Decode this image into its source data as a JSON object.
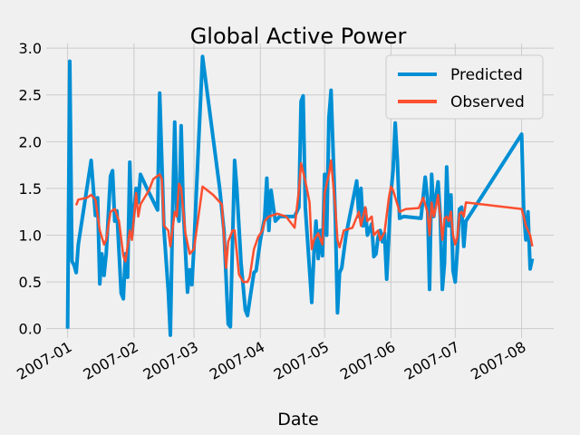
{
  "chart_data": {
    "type": "line",
    "title": "Global Active Power",
    "xlabel": "Date",
    "ylabel": "",
    "ylim": [
      -0.1,
      3.05
    ],
    "xlim": [
      "2006-12-22",
      "2007-08-16"
    ],
    "yticks": [
      "0.0",
      "0.5",
      "1.0",
      "1.5",
      "2.0",
      "2.5",
      "3.0"
    ],
    "xticks": [
      {
        "date": "2007-01-01",
        "label": "2007-01"
      },
      {
        "date": "2007-02-01",
        "label": "2007-02"
      },
      {
        "date": "2007-03-01",
        "label": "2007-03"
      },
      {
        "date": "2007-04-01",
        "label": "2007-04"
      },
      {
        "date": "2007-05-01",
        "label": "2007-05"
      },
      {
        "date": "2007-06-01",
        "label": "2007-06"
      },
      {
        "date": "2007-07-01",
        "label": "2007-07"
      },
      {
        "date": "2007-08-01",
        "label": "2007-08"
      }
    ],
    "grid": true,
    "legend_position": "top-right",
    "series": [
      {
        "name": "Predicted",
        "color": "#008fd5",
        "points": [
          [
            "2007-01-01",
            0.0
          ],
          [
            "2007-01-02",
            2.86
          ],
          [
            "2007-01-03",
            0.72
          ],
          [
            "2007-01-04",
            0.68
          ],
          [
            "2007-01-05",
            0.6
          ],
          [
            "2007-01-06",
            0.9
          ],
          [
            "2007-01-12",
            1.8
          ],
          [
            "2007-01-14",
            1.21
          ],
          [
            "2007-01-15",
            1.4
          ],
          [
            "2007-01-16",
            0.48
          ],
          [
            "2007-01-17",
            0.8
          ],
          [
            "2007-01-18",
            0.57
          ],
          [
            "2007-01-19",
            0.8
          ],
          [
            "2007-01-21",
            1.63
          ],
          [
            "2007-01-22",
            1.69
          ],
          [
            "2007-01-23",
            1.15
          ],
          [
            "2007-01-24",
            1.26
          ],
          [
            "2007-01-26",
            0.38
          ],
          [
            "2007-01-27",
            0.32
          ],
          [
            "2007-01-28",
            0.8
          ],
          [
            "2007-01-29",
            0.55
          ],
          [
            "2007-01-30",
            1.78
          ],
          [
            "2007-01-31",
            1.0
          ],
          [
            "2007-02-02",
            1.5
          ],
          [
            "2007-02-03",
            1.35
          ],
          [
            "2007-02-04",
            1.65
          ],
          [
            "2007-02-07",
            1.5
          ],
          [
            "2007-02-12",
            1.27
          ],
          [
            "2007-02-13",
            2.52
          ],
          [
            "2007-02-15",
            1.05
          ],
          [
            "2007-02-17",
            0.4
          ],
          [
            "2007-02-18",
            -0.07
          ],
          [
            "2007-02-19",
            1.2
          ],
          [
            "2007-02-20",
            2.21
          ],
          [
            "2007-02-21",
            1.27
          ],
          [
            "2007-02-22",
            1.15
          ],
          [
            "2007-02-23",
            2.17
          ],
          [
            "2007-02-24",
            1.3
          ],
          [
            "2007-02-26",
            0.39
          ],
          [
            "2007-02-27",
            0.63
          ],
          [
            "2007-02-28",
            0.47
          ],
          [
            "2007-03-01",
            0.87
          ],
          [
            "2007-03-02",
            1.4
          ],
          [
            "2007-03-05",
            2.91
          ],
          [
            "2007-03-13",
            1.5
          ],
          [
            "2007-03-15",
            1.05
          ],
          [
            "2007-03-17",
            0.05
          ],
          [
            "2007-03-18",
            0.02
          ],
          [
            "2007-03-20",
            1.8
          ],
          [
            "2007-03-21",
            1.5
          ],
          [
            "2007-03-23",
            0.7
          ],
          [
            "2007-03-25",
            0.2
          ],
          [
            "2007-03-26",
            0.14
          ],
          [
            "2007-03-27",
            0.3
          ],
          [
            "2007-03-29",
            0.6
          ],
          [
            "2007-03-30",
            0.62
          ],
          [
            "2007-04-01",
            0.95
          ],
          [
            "2007-04-03",
            1.18
          ],
          [
            "2007-04-04",
            1.61
          ],
          [
            "2007-04-05",
            1.05
          ],
          [
            "2007-04-06",
            1.48
          ],
          [
            "2007-04-08",
            1.15
          ],
          [
            "2007-04-10",
            1.2
          ],
          [
            "2007-04-13",
            1.2
          ],
          [
            "2007-04-17",
            1.2
          ],
          [
            "2007-04-19",
            1.3
          ],
          [
            "2007-04-20",
            2.43
          ],
          [
            "2007-04-21",
            2.49
          ],
          [
            "2007-04-22",
            1.3
          ],
          [
            "2007-04-25",
            0.28
          ],
          [
            "2007-04-26",
            0.8
          ],
          [
            "2007-04-27",
            1.15
          ],
          [
            "2007-04-28",
            0.75
          ],
          [
            "2007-04-29",
            1.05
          ],
          [
            "2007-04-30",
            0.78
          ],
          [
            "2007-05-01",
            1.65
          ],
          [
            "2007-05-02",
            1.0
          ],
          [
            "2007-05-03",
            2.25
          ],
          [
            "2007-05-04",
            2.55
          ],
          [
            "2007-05-06",
            1.2
          ],
          [
            "2007-05-07",
            0.17
          ],
          [
            "2007-05-08",
            0.6
          ],
          [
            "2007-05-09",
            0.65
          ],
          [
            "2007-05-11",
            1.0
          ],
          [
            "2007-05-16",
            1.58
          ],
          [
            "2007-05-17",
            1.2
          ],
          [
            "2007-05-18",
            1.5
          ],
          [
            "2007-05-19",
            1.1
          ],
          [
            "2007-05-20",
            1.28
          ],
          [
            "2007-05-21",
            1.0
          ],
          [
            "2007-05-23",
            1.12
          ],
          [
            "2007-05-24",
            0.77
          ],
          [
            "2007-05-25",
            0.8
          ],
          [
            "2007-05-26",
            0.98
          ],
          [
            "2007-05-27",
            1.05
          ],
          [
            "2007-05-28",
            0.93
          ],
          [
            "2007-05-29",
            1.02
          ],
          [
            "2007-05-30",
            0.53
          ],
          [
            "2007-06-01",
            1.45
          ],
          [
            "2007-06-02",
            1.7
          ],
          [
            "2007-06-03",
            2.2
          ],
          [
            "2007-06-04",
            1.8
          ],
          [
            "2007-06-05",
            1.18
          ],
          [
            "2007-06-07",
            1.2
          ],
          [
            "2007-06-15",
            1.18
          ],
          [
            "2007-06-17",
            1.62
          ],
          [
            "2007-06-18",
            1.4
          ],
          [
            "2007-06-19",
            0.42
          ],
          [
            "2007-06-20",
            1.65
          ],
          [
            "2007-06-21",
            1.2
          ],
          [
            "2007-06-22",
            1.4
          ],
          [
            "2007-06-23",
            1.57
          ],
          [
            "2007-06-24",
            1.2
          ],
          [
            "2007-06-25",
            0.42
          ],
          [
            "2007-06-26",
            0.7
          ],
          [
            "2007-06-27",
            1.73
          ],
          [
            "2007-06-28",
            1.1
          ],
          [
            "2007-06-29",
            1.43
          ],
          [
            "2007-06-30",
            0.62
          ],
          [
            "2007-07-01",
            0.5
          ],
          [
            "2007-07-02",
            0.85
          ],
          [
            "2007-07-03",
            1.28
          ],
          [
            "2007-07-04",
            1.3
          ],
          [
            "2007-07-05",
            0.88
          ],
          [
            "2007-07-06",
            1.15
          ],
          [
            "2007-08-01",
            2.08
          ],
          [
            "2007-08-02",
            1.25
          ],
          [
            "2007-08-03",
            0.95
          ],
          [
            "2007-08-04",
            1.25
          ],
          [
            "2007-08-05",
            0.64
          ],
          [
            "2007-08-06",
            0.75
          ]
        ]
      },
      {
        "name": "Observed",
        "color": "#fc4f30",
        "points": [
          [
            "2007-01-05",
            1.32
          ],
          [
            "2007-01-06",
            1.38
          ],
          [
            "2007-01-10",
            1.4
          ],
          [
            "2007-01-12",
            1.43
          ],
          [
            "2007-01-14",
            1.38
          ],
          [
            "2007-01-16",
            1.05
          ],
          [
            "2007-01-18",
            0.9
          ],
          [
            "2007-01-19",
            0.95
          ],
          [
            "2007-01-21",
            1.25
          ],
          [
            "2007-01-23",
            1.28
          ],
          [
            "2007-01-25",
            1.15
          ],
          [
            "2007-01-27",
            0.78
          ],
          [
            "2007-01-28",
            0.72
          ],
          [
            "2007-01-30",
            1.05
          ],
          [
            "2007-01-31",
            0.95
          ],
          [
            "2007-02-02",
            1.45
          ],
          [
            "2007-02-03",
            1.2
          ],
          [
            "2007-02-04",
            1.33
          ],
          [
            "2007-02-08",
            1.48
          ],
          [
            "2007-02-10",
            1.6
          ],
          [
            "2007-02-13",
            1.65
          ],
          [
            "2007-02-14",
            1.6
          ],
          [
            "2007-02-15",
            1.1
          ],
          [
            "2007-02-17",
            1.05
          ],
          [
            "2007-02-18",
            0.88
          ],
          [
            "2007-02-20",
            1.25
          ],
          [
            "2007-02-21",
            1.2
          ],
          [
            "2007-02-22",
            1.55
          ],
          [
            "2007-02-23",
            1.5
          ],
          [
            "2007-02-25",
            1.02
          ],
          [
            "2007-02-27",
            0.8
          ],
          [
            "2007-03-01",
            0.85
          ],
          [
            "2007-03-05",
            1.52
          ],
          [
            "2007-03-10",
            1.43
          ],
          [
            "2007-03-14",
            1.33
          ],
          [
            "2007-03-16",
            0.65
          ],
          [
            "2007-03-17",
            0.93
          ],
          [
            "2007-03-19",
            1.05
          ],
          [
            "2007-03-20",
            1.05
          ],
          [
            "2007-03-22",
            0.58
          ],
          [
            "2007-03-24",
            0.5
          ],
          [
            "2007-03-26",
            0.5
          ],
          [
            "2007-03-27",
            0.55
          ],
          [
            "2007-03-29",
            0.85
          ],
          [
            "2007-03-31",
            0.98
          ],
          [
            "2007-04-02",
            1.05
          ],
          [
            "2007-04-03",
            1.15
          ],
          [
            "2007-04-05",
            1.2
          ],
          [
            "2007-04-09",
            1.23
          ],
          [
            "2007-04-13",
            1.2
          ],
          [
            "2007-04-17",
            1.08
          ],
          [
            "2007-04-19",
            1.48
          ],
          [
            "2007-04-20",
            1.77
          ],
          [
            "2007-04-22",
            1.58
          ],
          [
            "2007-04-24",
            1.35
          ],
          [
            "2007-04-25",
            0.85
          ],
          [
            "2007-04-26",
            0.95
          ],
          [
            "2007-04-28",
            1.02
          ],
          [
            "2007-04-30",
            0.9
          ],
          [
            "2007-05-01",
            1.45
          ],
          [
            "2007-05-03",
            1.65
          ],
          [
            "2007-05-04",
            1.8
          ],
          [
            "2007-05-06",
            1.3
          ],
          [
            "2007-05-07",
            0.95
          ],
          [
            "2007-05-08",
            0.87
          ],
          [
            "2007-05-10",
            1.05
          ],
          [
            "2007-05-14",
            1.08
          ],
          [
            "2007-05-17",
            1.25
          ],
          [
            "2007-05-18",
            1.1
          ],
          [
            "2007-05-20",
            1.3
          ],
          [
            "2007-05-21",
            1.15
          ],
          [
            "2007-05-23",
            1.2
          ],
          [
            "2007-05-24",
            1.0
          ],
          [
            "2007-05-26",
            1.05
          ],
          [
            "2007-05-27",
            0.95
          ],
          [
            "2007-05-29",
            1.03
          ],
          [
            "2007-05-31",
            1.4
          ],
          [
            "2007-06-01",
            1.52
          ],
          [
            "2007-06-02",
            1.48
          ],
          [
            "2007-06-05",
            1.25
          ],
          [
            "2007-06-08",
            1.28
          ],
          [
            "2007-06-14",
            1.29
          ],
          [
            "2007-06-16",
            1.4
          ],
          [
            "2007-06-18",
            1.25
          ],
          [
            "2007-06-19",
            1.0
          ],
          [
            "2007-06-20",
            1.35
          ],
          [
            "2007-06-21",
            1.2
          ],
          [
            "2007-06-22",
            1.3
          ],
          [
            "2007-06-23",
            1.43
          ],
          [
            "2007-06-24",
            1.2
          ],
          [
            "2007-06-25",
            0.95
          ],
          [
            "2007-06-26",
            1.18
          ],
          [
            "2007-06-27",
            1.2
          ],
          [
            "2007-06-28",
            1.15
          ],
          [
            "2007-06-29",
            1.25
          ],
          [
            "2007-06-30",
            1.0
          ],
          [
            "2007-07-01",
            0.9
          ],
          [
            "2007-07-02",
            0.98
          ],
          [
            "2007-07-03",
            1.23
          ],
          [
            "2007-07-04",
            1.25
          ],
          [
            "2007-07-05",
            1.2
          ],
          [
            "2007-07-06",
            1.35
          ],
          [
            "2007-08-01",
            1.28
          ],
          [
            "2007-08-02",
            1.2
          ],
          [
            "2007-08-03",
            1.1
          ],
          [
            "2007-08-05",
            1.0
          ],
          [
            "2007-08-06",
            0.88
          ]
        ]
      }
    ]
  }
}
